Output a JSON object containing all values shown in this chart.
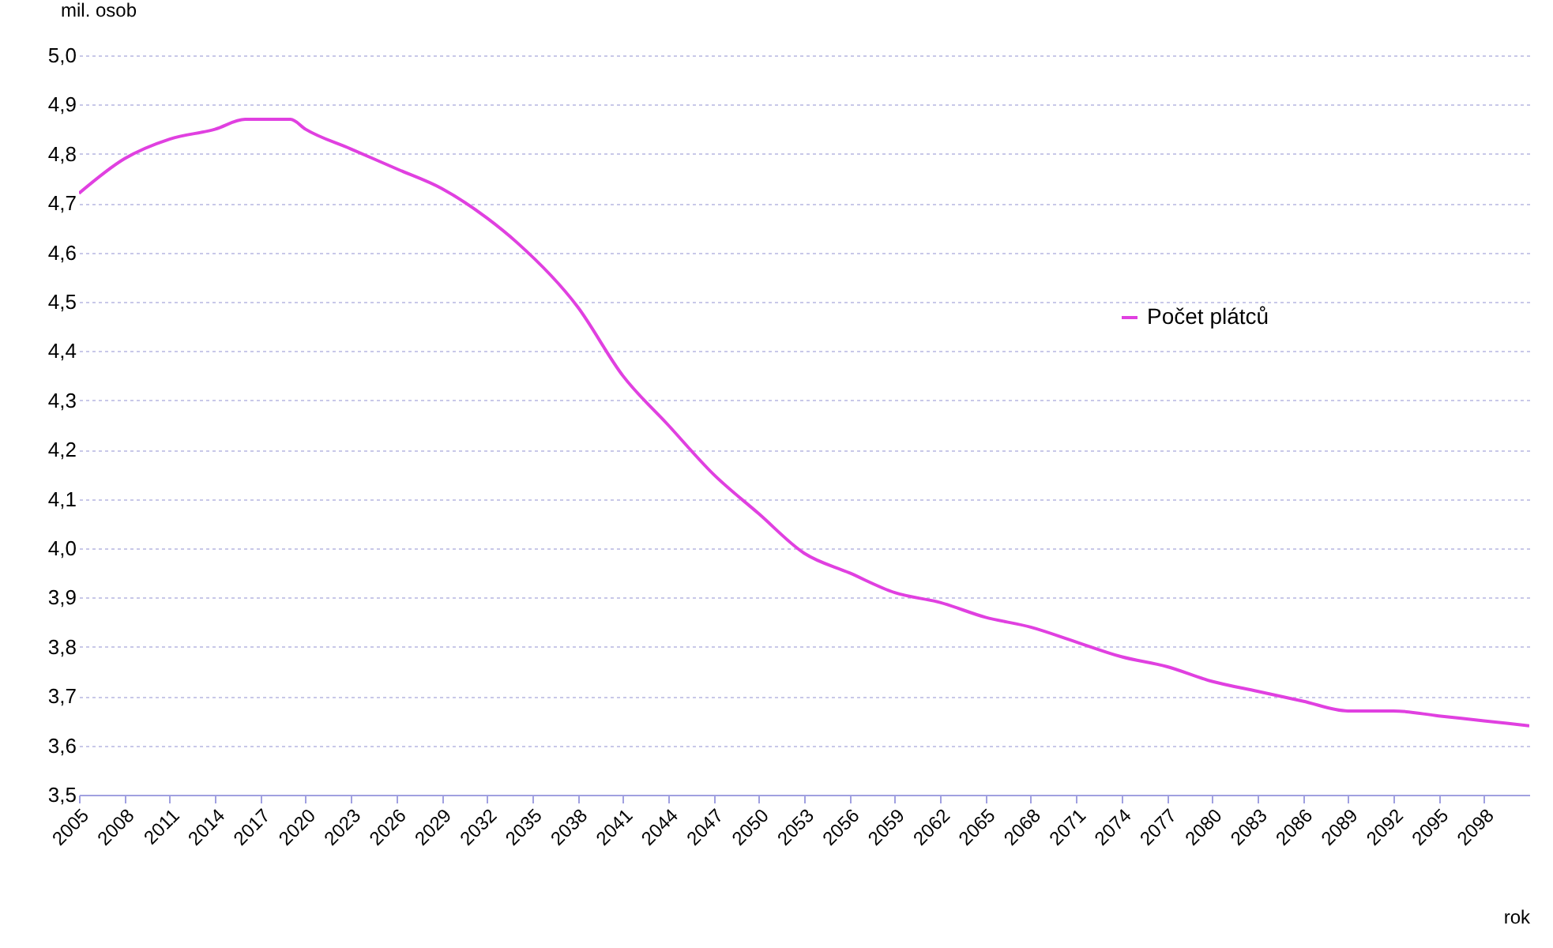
{
  "chart_data": {
    "type": "line",
    "ylabel": "mil. osob",
    "xlabel": "rok",
    "x": [
      2005,
      2008,
      2011,
      2014,
      2016,
      2019,
      2020,
      2023,
      2026,
      2029,
      2032,
      2034,
      2038,
      2041,
      2044,
      2047,
      2050,
      2053,
      2056,
      2059,
      2062,
      2065,
      2068,
      2071,
      2074,
      2077,
      2080,
      2083,
      2086,
      2089,
      2092,
      2095,
      2098,
      2101
    ],
    "series": [
      {
        "name": "Počet plátců",
        "color": "#e040e0",
        "values": [
          4.72,
          4.79,
          4.83,
          4.85,
          4.87,
          4.87,
          4.85,
          4.81,
          4.77,
          4.73,
          4.67,
          4.62,
          4.49,
          4.35,
          4.25,
          4.15,
          4.07,
          3.99,
          3.95,
          3.91,
          3.89,
          3.86,
          3.84,
          3.81,
          3.78,
          3.76,
          3.73,
          3.71,
          3.69,
          3.67,
          3.67,
          3.66,
          3.65,
          3.64
        ]
      }
    ],
    "xlim": [
      2005,
      2101
    ],
    "xticks": [
      2005,
      2008,
      2011,
      2014,
      2017,
      2020,
      2023,
      2026,
      2029,
      2032,
      2035,
      2038,
      2041,
      2044,
      2047,
      2050,
      2053,
      2056,
      2059,
      2062,
      2065,
      2068,
      2071,
      2074,
      2077,
      2080,
      2083,
      2086,
      2089,
      2092,
      2095,
      2098
    ],
    "ylim": [
      3.5,
      5.0
    ],
    "yticks": [
      {
        "value": 3.5,
        "label": "3,5"
      },
      {
        "value": 3.6,
        "label": "3,6"
      },
      {
        "value": 3.7,
        "label": "3,7"
      },
      {
        "value": 3.8,
        "label": "3,8"
      },
      {
        "value": 3.9,
        "label": "3,9"
      },
      {
        "value": 4.0,
        "label": "4,0"
      },
      {
        "value": 4.1,
        "label": "4,1"
      },
      {
        "value": 4.2,
        "label": "4,2"
      },
      {
        "value": 4.3,
        "label": "4,3"
      },
      {
        "value": 4.4,
        "label": "4,4"
      },
      {
        "value": 4.5,
        "label": "4,5"
      },
      {
        "value": 4.6,
        "label": "4,6"
      },
      {
        "value": 4.7,
        "label": "4,7"
      },
      {
        "value": 4.8,
        "label": "4,8"
      },
      {
        "value": 4.9,
        "label": "4,9"
      },
      {
        "value": 5.0,
        "label": "5,0"
      }
    ],
    "grid": "y",
    "legend": "right",
    "marker": "none",
    "line_style": "solid"
  }
}
